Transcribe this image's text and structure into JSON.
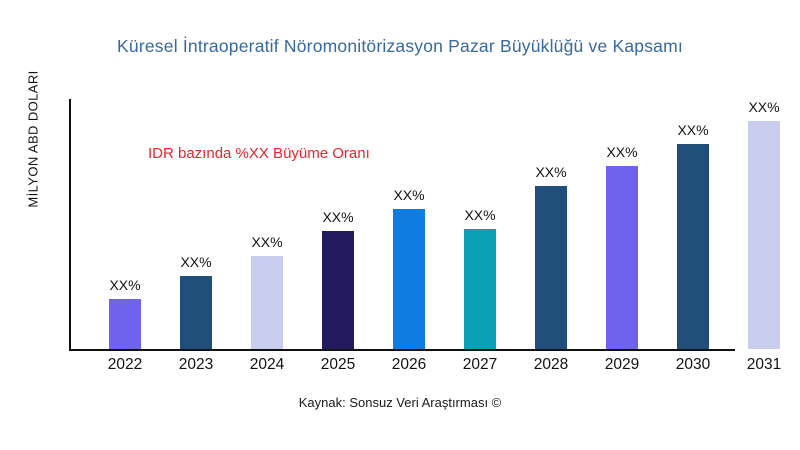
{
  "chart_data": {
    "type": "bar",
    "title": "Küresel İntraoperatif Nöromonitörizasyon Pazar Büyüklüğü ve Kapsamı",
    "ylabel": "MİLYON ABD DOLARI",
    "xlabel": "",
    "annotation": "IDR bazında %XX Büyüme Oranı",
    "source": "Kaynak: Sonsuz Veri Araştırması ©",
    "categories": [
      "2022",
      "2023",
      "2024",
      "2025",
      "2026",
      "2027",
      "2028",
      "2029",
      "2030",
      "2031"
    ],
    "value_labels": [
      "XX%",
      "XX%",
      "XX%",
      "XX%",
      "XX%",
      "XX%",
      "XX%",
      "XX%",
      "XX%",
      "XX%"
    ],
    "relative_heights_pct": [
      20,
      29,
      37,
      47,
      56,
      48,
      65,
      73,
      82,
      91
    ],
    "bar_colors": [
      "#6F63EB",
      "#1F4E7B",
      "#C8CCEE",
      "#211A5E",
      "#0E7CE0",
      "#09A0B5",
      "#1F4E7B",
      "#6F63EB",
      "#1F4E7B",
      "#C8CCEE"
    ],
    "layout": {
      "gridlines": false,
      "y_tick_labels_visible": false,
      "legend": "none",
      "title_color": "#36699E",
      "annotation_color": "#E8262C",
      "axis_color": "#111111",
      "background": "#ffffff"
    }
  }
}
